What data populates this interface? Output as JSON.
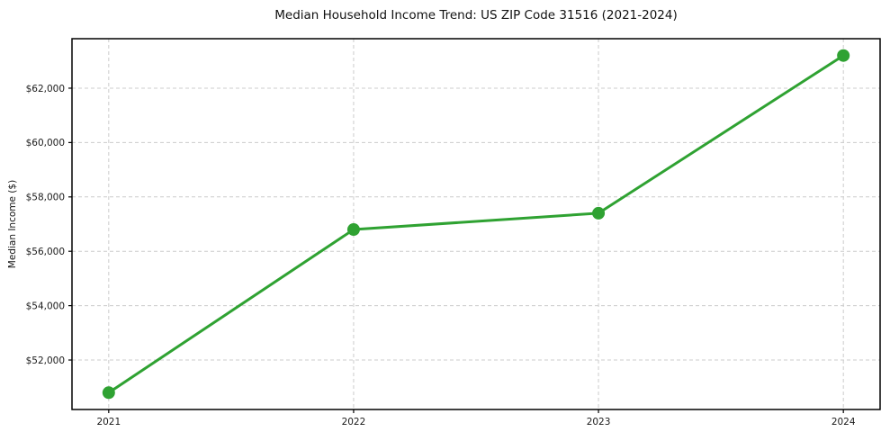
{
  "title": "Median Household Income Trend: US ZIP Code 31516 (2021-2024)",
  "chart_data": {
    "type": "line",
    "title": "Median Household Income Trend: US ZIP Code 31516 (2021-2024)",
    "xlabel": "",
    "ylabel": "Median Income ($)",
    "x": [
      2021,
      2022,
      2023,
      2024
    ],
    "x_tick_labels": [
      "2021",
      "2022",
      "2023",
      "2024"
    ],
    "series": [
      {
        "name": "Median Household Income",
        "values": [
          50800,
          56800,
          57400,
          63200
        ]
      }
    ],
    "xlim": [
      2020.85,
      2024.15
    ],
    "ylim": [
      50180,
      63820
    ],
    "yticks": [
      52000,
      54000,
      56000,
      58000,
      60000,
      62000
    ],
    "ytick_labels": [
      "$52,000",
      "$54,000",
      "$56,000",
      "$58,000",
      "$60,000",
      "$62,000"
    ],
    "grid": true,
    "legend": "none",
    "line_color": "#2fa232",
    "grid_color": "#cccccc",
    "spine_color": "#000000",
    "background_color": "#ffffff",
    "line_width": 3,
    "marker": "circle",
    "marker_radius": 7
  }
}
